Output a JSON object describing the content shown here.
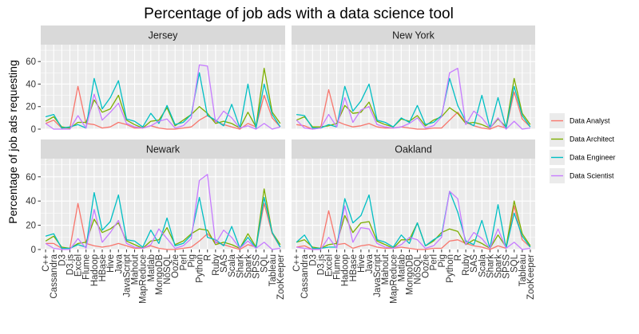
{
  "chart_data": {
    "type": "line",
    "title": "Percentage of job ads with a data science tool",
    "xlabel": "",
    "ylabel": "Percentage of job ads requesting",
    "ylim": [
      0,
      75
    ],
    "yticks": [
      0,
      20,
      40,
      60
    ],
    "categories": [
      "C++",
      "Cassandra",
      "D3",
      "D3.js",
      "Excel",
      "Flume",
      "Hadoop",
      "HBase",
      "Hive",
      "Java",
      "JavaScript",
      "Mahout",
      "MapReduce",
      "Matlab",
      "MongoDB",
      "NoSQL",
      "Oozie",
      "Perl",
      "Pig",
      "Python",
      "R",
      "Ruby",
      "SAS",
      "Scala",
      "Shark",
      "Spark",
      "SPSS",
      "SQL",
      "Tableau",
      "ZooKeeper"
    ],
    "legend": {
      "title": "",
      "position": "right",
      "entries": [
        {
          "name": "Data Analyst",
          "color": "#F8766D"
        },
        {
          "name": "Data Architect",
          "color": "#7CAE00"
        },
        {
          "name": "Data Engineer",
          "color": "#00BFC4"
        },
        {
          "name": "Data Scientist",
          "color": "#C77CFF"
        }
      ]
    },
    "panels": [
      {
        "name": "Jersey",
        "series": [
          {
            "name": "Data Analyst",
            "values": [
              5,
              8,
              1,
              1,
              38,
              5,
              4,
              1,
              2,
              6,
              4,
              1,
              1,
              3,
              1,
              0,
              0,
              1,
              2,
              8,
              12,
              7,
              4,
              2,
              0,
              5,
              2,
              30,
              10,
              2
            ]
          },
          {
            "name": "Data Architect",
            "values": [
              7,
              11,
              2,
              1,
              6,
              6,
              26,
              15,
              18,
              30,
              8,
              4,
              1,
              7,
              8,
              19,
              3,
              8,
              13,
              20,
              14,
              5,
              7,
              5,
              1,
              15,
              2,
              54,
              15,
              5
            ]
          },
          {
            "name": "Data Engineer",
            "values": [
              11,
              13,
              1,
              2,
              4,
              1,
              45,
              18,
              28,
              43,
              9,
              7,
              2,
              14,
              5,
              21,
              4,
              6,
              13,
              50,
              12,
              8,
              3,
              22,
              1,
              40,
              1,
              40,
              13,
              2
            ]
          },
          {
            "name": "Data Scientist",
            "values": [
              5,
              0,
              0,
              0,
              12,
              1,
              31,
              8,
              15,
              23,
              5,
              2,
              1,
              3,
              7,
              9,
              1,
              3,
              10,
              57,
              56,
              6,
              16,
              10,
              1,
              3,
              0,
              5,
              0,
              2
            ]
          }
        ]
      },
      {
        "name": "New York",
        "series": [
          {
            "name": "Data Analyst",
            "values": [
              4,
              3,
              0,
              1,
              35,
              7,
              4,
              2,
              3,
              5,
              2,
              1,
              1,
              2,
              1,
              0,
              0,
              1,
              1,
              8,
              15,
              6,
              3,
              1,
              0,
              3,
              1,
              33,
              9,
              2
            ]
          },
          {
            "name": "Data Architect",
            "values": [
              8,
              11,
              2,
              2,
              3,
              5,
              21,
              14,
              15,
              24,
              7,
              4,
              2,
              9,
              7,
              12,
              3,
              8,
              11,
              19,
              14,
              5,
              6,
              4,
              1,
              9,
              2,
              45,
              14,
              4
            ]
          },
          {
            "name": "Data Engineer",
            "values": [
              13,
              12,
              1,
              1,
              4,
              2,
              38,
              16,
              25,
              40,
              8,
              6,
              2,
              10,
              6,
              21,
              4,
              6,
              12,
              45,
              21,
              7,
              3,
              30,
              1,
              28,
              1,
              38,
              12,
              2
            ]
          },
          {
            "name": "Data Scientist",
            "values": [
              8,
              1,
              0,
              1,
              13,
              2,
              28,
              6,
              17,
              20,
              4,
              2,
              1,
              2,
              5,
              10,
              1,
              3,
              11,
              50,
              54,
              4,
              16,
              10,
              1,
              10,
              0,
              7,
              0,
              1
            ]
          }
        ]
      },
      {
        "name": "Newark",
        "series": [
          {
            "name": "Data Analyst",
            "values": [
              5,
              5,
              1,
              1,
              38,
              5,
              3,
              2,
              3,
              5,
              3,
              1,
              1,
              3,
              1,
              0,
              0,
              1,
              2,
              7,
              13,
              6,
              4,
              2,
              0,
              4,
              2,
              38,
              13,
              2
            ]
          },
          {
            "name": "Data Architect",
            "values": [
              7,
              11,
              2,
              1,
              5,
              6,
              25,
              14,
              17,
              22,
              7,
              4,
              1,
              7,
              8,
              18,
              4,
              7,
              13,
              17,
              16,
              4,
              6,
              4,
              1,
              13,
              2,
              50,
              14,
              4
            ]
          },
          {
            "name": "Data Engineer",
            "values": [
              11,
              13,
              1,
              1,
              4,
              2,
              47,
              16,
              23,
              45,
              8,
              7,
              2,
              16,
              5,
              26,
              3,
              5,
              12,
              43,
              10,
              8,
              3,
              19,
              1,
              10,
              1,
              43,
              14,
              2
            ]
          },
          {
            "name": "Data Scientist",
            "values": [
              5,
              1,
              0,
              0,
              9,
              1,
              33,
              6,
              14,
              24,
              5,
              2,
              1,
              4,
              17,
              9,
              1,
              3,
              9,
              57,
              62,
              5,
              16,
              10,
              1,
              7,
              1,
              6,
              0,
              1
            ]
          }
        ]
      },
      {
        "name": "Oakland",
        "series": [
          {
            "name": "Data Analyst",
            "values": [
              2,
              3,
              0,
              1,
              32,
              4,
              5,
              1,
              3,
              4,
              2,
              1,
              1,
              2,
              1,
              0,
              0,
              1,
              1,
              7,
              8,
              5,
              3,
              2,
              0,
              3,
              1,
              36,
              8,
              2
            ]
          },
          {
            "name": "Data Architect",
            "values": [
              6,
              8,
              2,
              1,
              4,
              5,
              28,
              14,
              22,
              23,
              7,
              4,
              1,
              8,
              8,
              22,
              3,
              7,
              14,
              17,
              15,
              4,
              8,
              5,
              1,
              12,
              2,
              40,
              13,
              3
            ]
          },
          {
            "name": "Data Engineer",
            "values": [
              6,
              12,
              1,
              1,
              2,
              2,
              42,
              22,
              28,
              45,
              8,
              6,
              2,
              12,
              5,
              22,
              3,
              8,
              12,
              48,
              31,
              7,
              4,
              24,
              1,
              37,
              1,
              30,
              11,
              2
            ]
          },
          {
            "name": "Data Scientist",
            "values": [
              2,
              1,
              0,
              0,
              10,
              1,
              36,
              6,
              18,
              17,
              5,
              2,
              1,
              4,
              10,
              8,
              1,
              3,
              10,
              48,
              42,
              4,
              14,
              9,
              1,
              17,
              1,
              6,
              0,
              1
            ]
          }
        ]
      }
    ]
  }
}
